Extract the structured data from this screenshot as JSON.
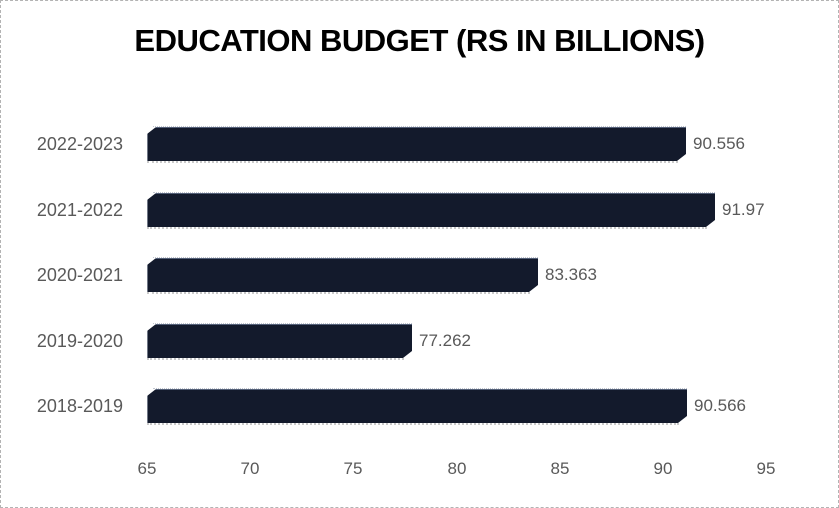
{
  "window": {
    "background": "#ffffff",
    "frame_border_color": "#b3b3b3"
  },
  "chart_data": {
    "type": "bar",
    "orientation": "horizontal",
    "style": "3d",
    "title": "EDUCATION BUDGET (RS IN BILLIONS)",
    "categories": [
      "2022-2023",
      "2021-2022",
      "2020-2021",
      "2019-2020",
      "2018-2019"
    ],
    "values": [
      90.556,
      91.97,
      83.363,
      77.262,
      90.566
    ],
    "value_labels": [
      "90.556",
      "91.97",
      "83.363",
      "77.262",
      "90.566"
    ],
    "xlabel": "",
    "ylabel": "",
    "xlim": [
      65,
      95
    ],
    "x_ticks": [
      65,
      70,
      75,
      80,
      85,
      90,
      95
    ],
    "grid": false,
    "legend": false,
    "bar_color": "#131a2c",
    "title_color": "#000000",
    "label_color": "#595959"
  }
}
